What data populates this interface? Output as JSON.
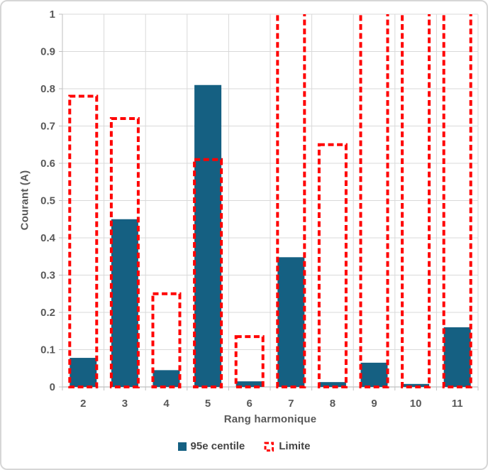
{
  "chart_data": {
    "type": "bar",
    "title": "",
    "xlabel": "Rang harmonique",
    "ylabel": "Courant (A)",
    "categories": [
      "2",
      "3",
      "4",
      "5",
      "6",
      "7",
      "8",
      "9",
      "10",
      "11"
    ],
    "series": [
      {
        "name": "95e centile",
        "style": "solid-fill",
        "color": "#156082",
        "values": [
          0.078,
          0.45,
          0.045,
          0.81,
          0.015,
          0.348,
          0.013,
          0.065,
          0.008,
          0.16
        ]
      },
      {
        "name": "Limite",
        "style": "dashed-outline",
        "color": "#FF0000",
        "values": [
          0.78,
          0.72,
          0.25,
          0.61,
          0.135,
          ">1",
          0.65,
          ">1",
          ">1",
          ">1"
        ]
      }
    ],
    "ylim": [
      0,
      1
    ],
    "ytick_step": 0.1,
    "ytick_labels": [
      "0",
      "0.1",
      "0.2",
      "0.3",
      "0.4",
      "0.5",
      "0.6",
      "0.7",
      "0.8",
      "0.9",
      "1"
    ],
    "grid": true,
    "legend_position": "bottom",
    "note": "Limite values marked \">1\" are drawn running off the top of the plot (clipped at 1)"
  },
  "colors": {
    "gridline": "#D9D9D9",
    "axis_line": "#BFBFBF",
    "tick_text": "#595959",
    "frame_border": "#D6D6D6",
    "background": "#FFFFFF"
  }
}
